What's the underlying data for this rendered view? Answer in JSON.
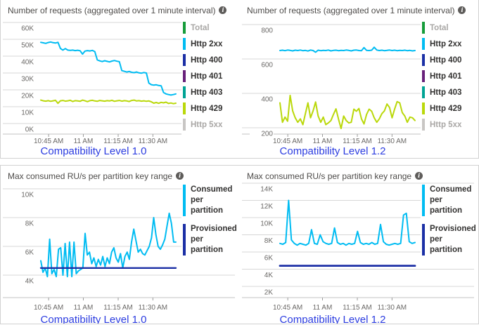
{
  "colors": {
    "total_green": "#169c3a",
    "http2xx_cyan": "#00bcf2",
    "http400_navy": "#1b2fa5",
    "http401_purple": "#68217a",
    "http403_teal": "#00a394",
    "http429_yellow": "#bad80a",
    "http5xx_gray": "#c8c6c4",
    "consumed_cyan": "#00bcf2",
    "provisioned_navy": "#1b2fa5",
    "caption_blue": "#2b3ce0"
  },
  "chart_data": [
    {
      "type": "line",
      "title": "Number of requests (aggregated over 1 minute interval)",
      "info_icon": "info-icon",
      "caption": "Compatibility Level 1.0",
      "x_ticks": [
        "10:45 AM",
        "11 AM",
        "11:15 AM",
        "11:30 AM"
      ],
      "y_gridlines": [
        {
          "value": 60,
          "label": "60K"
        },
        {
          "value": 50,
          "label": "50K"
        },
        {
          "value": 40,
          "label": "40K"
        },
        {
          "value": 30,
          "label": "30K"
        },
        {
          "value": 20,
          "label": "20K"
        },
        {
          "value": 10,
          "label": "10K"
        },
        {
          "value": 0,
          "label": "0K"
        }
      ],
      "ylim": [
        0,
        60
      ],
      "legend": [
        {
          "label": "Total",
          "color": "total_green",
          "muted": true
        },
        {
          "label": "Http 2xx",
          "color": "http2xx_cyan",
          "muted": false
        },
        {
          "label": "Http 400",
          "color": "http400_navy",
          "muted": false
        },
        {
          "label": "Http 401",
          "color": "http401_purple",
          "muted": false
        },
        {
          "label": "Http 403",
          "color": "http403_teal",
          "muted": false
        },
        {
          "label": "Http 429",
          "color": "http429_yellow",
          "muted": false
        },
        {
          "label": "Http 5xx",
          "color": "http5xx_gray",
          "muted": true
        }
      ],
      "series": [
        {
          "name": "Http 2xx",
          "color": "http2xx_cyan",
          "stroke_width": 2,
          "values": [
            48.2,
            47.9,
            47.6,
            48.1,
            48.4,
            48.0,
            47.8,
            48.2,
            44.6,
            43.6,
            44.5,
            43.6,
            43.4,
            43.6,
            43.3,
            43.5,
            43.2,
            41.2,
            43.0,
            43.3,
            43.1,
            43.4,
            42.7,
            37.8,
            37.2,
            36.8,
            37.3,
            36.9,
            36.6,
            37.1,
            37.4,
            37.0,
            36.7,
            31.4,
            31.0,
            30.6,
            30.9,
            30.4,
            30.2,
            30.6,
            30.1,
            29.9,
            30.3,
            30.0,
            24.0,
            23.1,
            22.8,
            23.0,
            22.6,
            22.4,
            18.4,
            17.6,
            17.2,
            16.9,
            17.2,
            17.6
          ]
        },
        {
          "name": "Http 429",
          "color": "http429_yellow",
          "stroke_width": 2,
          "values": [
            13.9,
            13.5,
            13.3,
            13.6,
            13.2,
            13.5,
            13.8,
            12.0,
            13.5,
            13.7,
            13.3,
            13.5,
            13.8,
            13.1,
            13.6,
            13.4,
            13.2,
            13.9,
            13.5,
            13.0,
            13.6,
            13.8,
            13.4,
            13.2,
            13.7,
            13.5,
            13.3,
            13.6,
            13.4,
            13.8,
            13.2,
            13.5,
            13.7,
            13.3,
            13.6,
            13.4,
            13.1,
            13.7,
            13.9,
            13.4,
            13.6,
            13.3,
            13.5,
            13.2,
            13.4,
            12.9,
            12.1,
            12.5,
            12.0,
            12.6,
            12.3,
            12.7,
            11.9,
            12.2,
            11.8,
            12.1
          ]
        }
      ]
    },
    {
      "type": "line",
      "title": "Number of requests (aggregated over 1 minute interval)",
      "info_icon": "info-icon",
      "caption": "Compatibility Level 1.2",
      "x_ticks": [
        "10:45 AM",
        "11 AM",
        "11:15 AM",
        "11:30 AM"
      ],
      "y_gridlines": [
        {
          "value": 800,
          "label": "800"
        },
        {
          "value": 600,
          "label": "600"
        },
        {
          "value": 400,
          "label": "400"
        },
        {
          "value": 200,
          "label": "200"
        }
      ],
      "ylim": [
        0,
        800
      ],
      "legend": [
        {
          "label": "Total",
          "color": "total_green",
          "muted": true
        },
        {
          "label": "Http 2xx",
          "color": "http2xx_cyan",
          "muted": false
        },
        {
          "label": "Http 400",
          "color": "http400_navy",
          "muted": false
        },
        {
          "label": "Http 401",
          "color": "http401_purple",
          "muted": false
        },
        {
          "label": "Http 403",
          "color": "http403_teal",
          "muted": false
        },
        {
          "label": "Http 429",
          "color": "http429_yellow",
          "muted": false
        },
        {
          "label": "Http 5xx",
          "color": "http5xx_gray",
          "muted": true
        }
      ],
      "series": [
        {
          "name": "Http 2xx",
          "color": "http2xx_cyan",
          "stroke_width": 2,
          "values": [
            649,
            651,
            648,
            652,
            650,
            647,
            651,
            649,
            652,
            648,
            650,
            646,
            652,
            649,
            639,
            651,
            648,
            650,
            649,
            652,
            647,
            650,
            651,
            648,
            650,
            649,
            652,
            650,
            647,
            651,
            652,
            649,
            648,
            666,
            650,
            649,
            651,
            668,
            652,
            649,
            651,
            648,
            650,
            652,
            649,
            651,
            648,
            650,
            649,
            651,
            648,
            650,
            647,
            649
          ]
        },
        {
          "name": "Http 429",
          "color": "http429_yellow",
          "stroke_width": 2,
          "values": [
            345,
            232,
            262,
            238,
            388,
            298,
            258,
            232,
            252,
            218,
            282,
            345,
            258,
            298,
            350,
            268,
            232,
            262,
            218,
            228,
            242,
            278,
            310,
            250,
            196,
            268,
            242,
            228,
            232,
            308,
            296,
            312,
            252,
            222,
            278,
            308,
            296,
            258,
            232,
            252,
            282,
            298,
            338,
            318,
            258,
            308,
            352,
            345,
            288,
            268,
            232,
            262,
            258,
            242
          ]
        }
      ]
    },
    {
      "type": "line",
      "title": "Max consumed RU/s per partition key range",
      "info_icon": "info-icon",
      "caption": "Compatibility Level 1.0",
      "x_ticks": [
        "10:45 AM",
        "11 AM",
        "11:15 AM",
        "11:30 AM"
      ],
      "y_gridlines": [
        {
          "value": 10,
          "label": "10K"
        },
        {
          "value": 8,
          "label": "8K"
        },
        {
          "value": 6,
          "label": "6K"
        },
        {
          "value": 4,
          "label": "4K"
        }
      ],
      "ylim": [
        2,
        10
      ],
      "legend": [
        {
          "label": "Consumed per partition",
          "color": "consumed_cyan",
          "muted": false
        },
        {
          "label": "Provisioned per partition",
          "color": "provisioned_navy",
          "muted": false
        }
      ],
      "series": [
        {
          "name": "Consumed per partition",
          "color": "consumed_cyan",
          "stroke_width": 2,
          "values": [
            5.0,
            4.2,
            4.5,
            3.9,
            6.5,
            4.1,
            4.4,
            3.9,
            5.8,
            5.9,
            4.0,
            6.2,
            3.9,
            6.3,
            3.9,
            6.3,
            4.1,
            4.3,
            4.4,
            4.5,
            6.9,
            5.4,
            5.6,
            4.8,
            5.2,
            4.6,
            5.1,
            4.7,
            5.3,
            4.6,
            5.2,
            4.8,
            5.6,
            5.9,
            5.2,
            4.9,
            5.5,
            4.5,
            5.3,
            5.6,
            5.1,
            6.3,
            7.2,
            6.4,
            5.6,
            5.8,
            5.5,
            5.4,
            5.7,
            6.0,
            6.6,
            8.0,
            6.8,
            6.0,
            5.8,
            6.1,
            6.5,
            7.4,
            8.3,
            7.6,
            6.3,
            6.3
          ]
        },
        {
          "name": "Provisioned per partition",
          "color": "provisioned_navy",
          "stroke_width": 2.4,
          "values": [
            4.5,
            4.5
          ]
        }
      ]
    },
    {
      "type": "line",
      "title": "Max consumed RU/s per partition key range",
      "info_icon": "info-icon",
      "caption": "Compatibility Level 1.2",
      "x_ticks": [
        "10:45 AM",
        "11 AM",
        "11:15 AM",
        "11:30 AM"
      ],
      "y_gridlines": [
        {
          "value": 14,
          "label": "14K"
        },
        {
          "value": 12,
          "label": "12K"
        },
        {
          "value": 10,
          "label": "10K"
        },
        {
          "value": 8,
          "label": "8K"
        },
        {
          "value": 6,
          "label": "6K"
        },
        {
          "value": 4,
          "label": "4K"
        },
        {
          "value": 2,
          "label": "2K"
        }
      ],
      "ylim": [
        2,
        14
      ],
      "legend": [
        {
          "label": "Consumed per partition",
          "color": "consumed_cyan",
          "muted": false
        },
        {
          "label": "Provisioned per partition",
          "color": "provisioned_navy",
          "muted": false
        }
      ],
      "series": [
        {
          "name": "Consumed per partition",
          "color": "consumed_cyan",
          "stroke_width": 2,
          "values": [
            7.0,
            6.9,
            7.1,
            12.0,
            7.4,
            7.0,
            6.8,
            7.0,
            6.9,
            6.8,
            7.0,
            8.6,
            7.0,
            6.9,
            8.0,
            7.2,
            7.0,
            6.9,
            7.0,
            8.8,
            7.1,
            6.9,
            7.0,
            6.8,
            7.0,
            6.9,
            7.0,
            8.4,
            7.1,
            6.9,
            7.0,
            6.9,
            7.1,
            6.9,
            7.0,
            9.2,
            7.2,
            6.9,
            6.8,
            6.9,
            7.0,
            6.9,
            7.0,
            10.3,
            10.5,
            7.2,
            7.0,
            7.1
          ]
        },
        {
          "name": "Provisioned per partition",
          "color": "provisioned_navy",
          "stroke_width": 2.8,
          "values": [
            4.4,
            4.4
          ]
        }
      ]
    }
  ]
}
